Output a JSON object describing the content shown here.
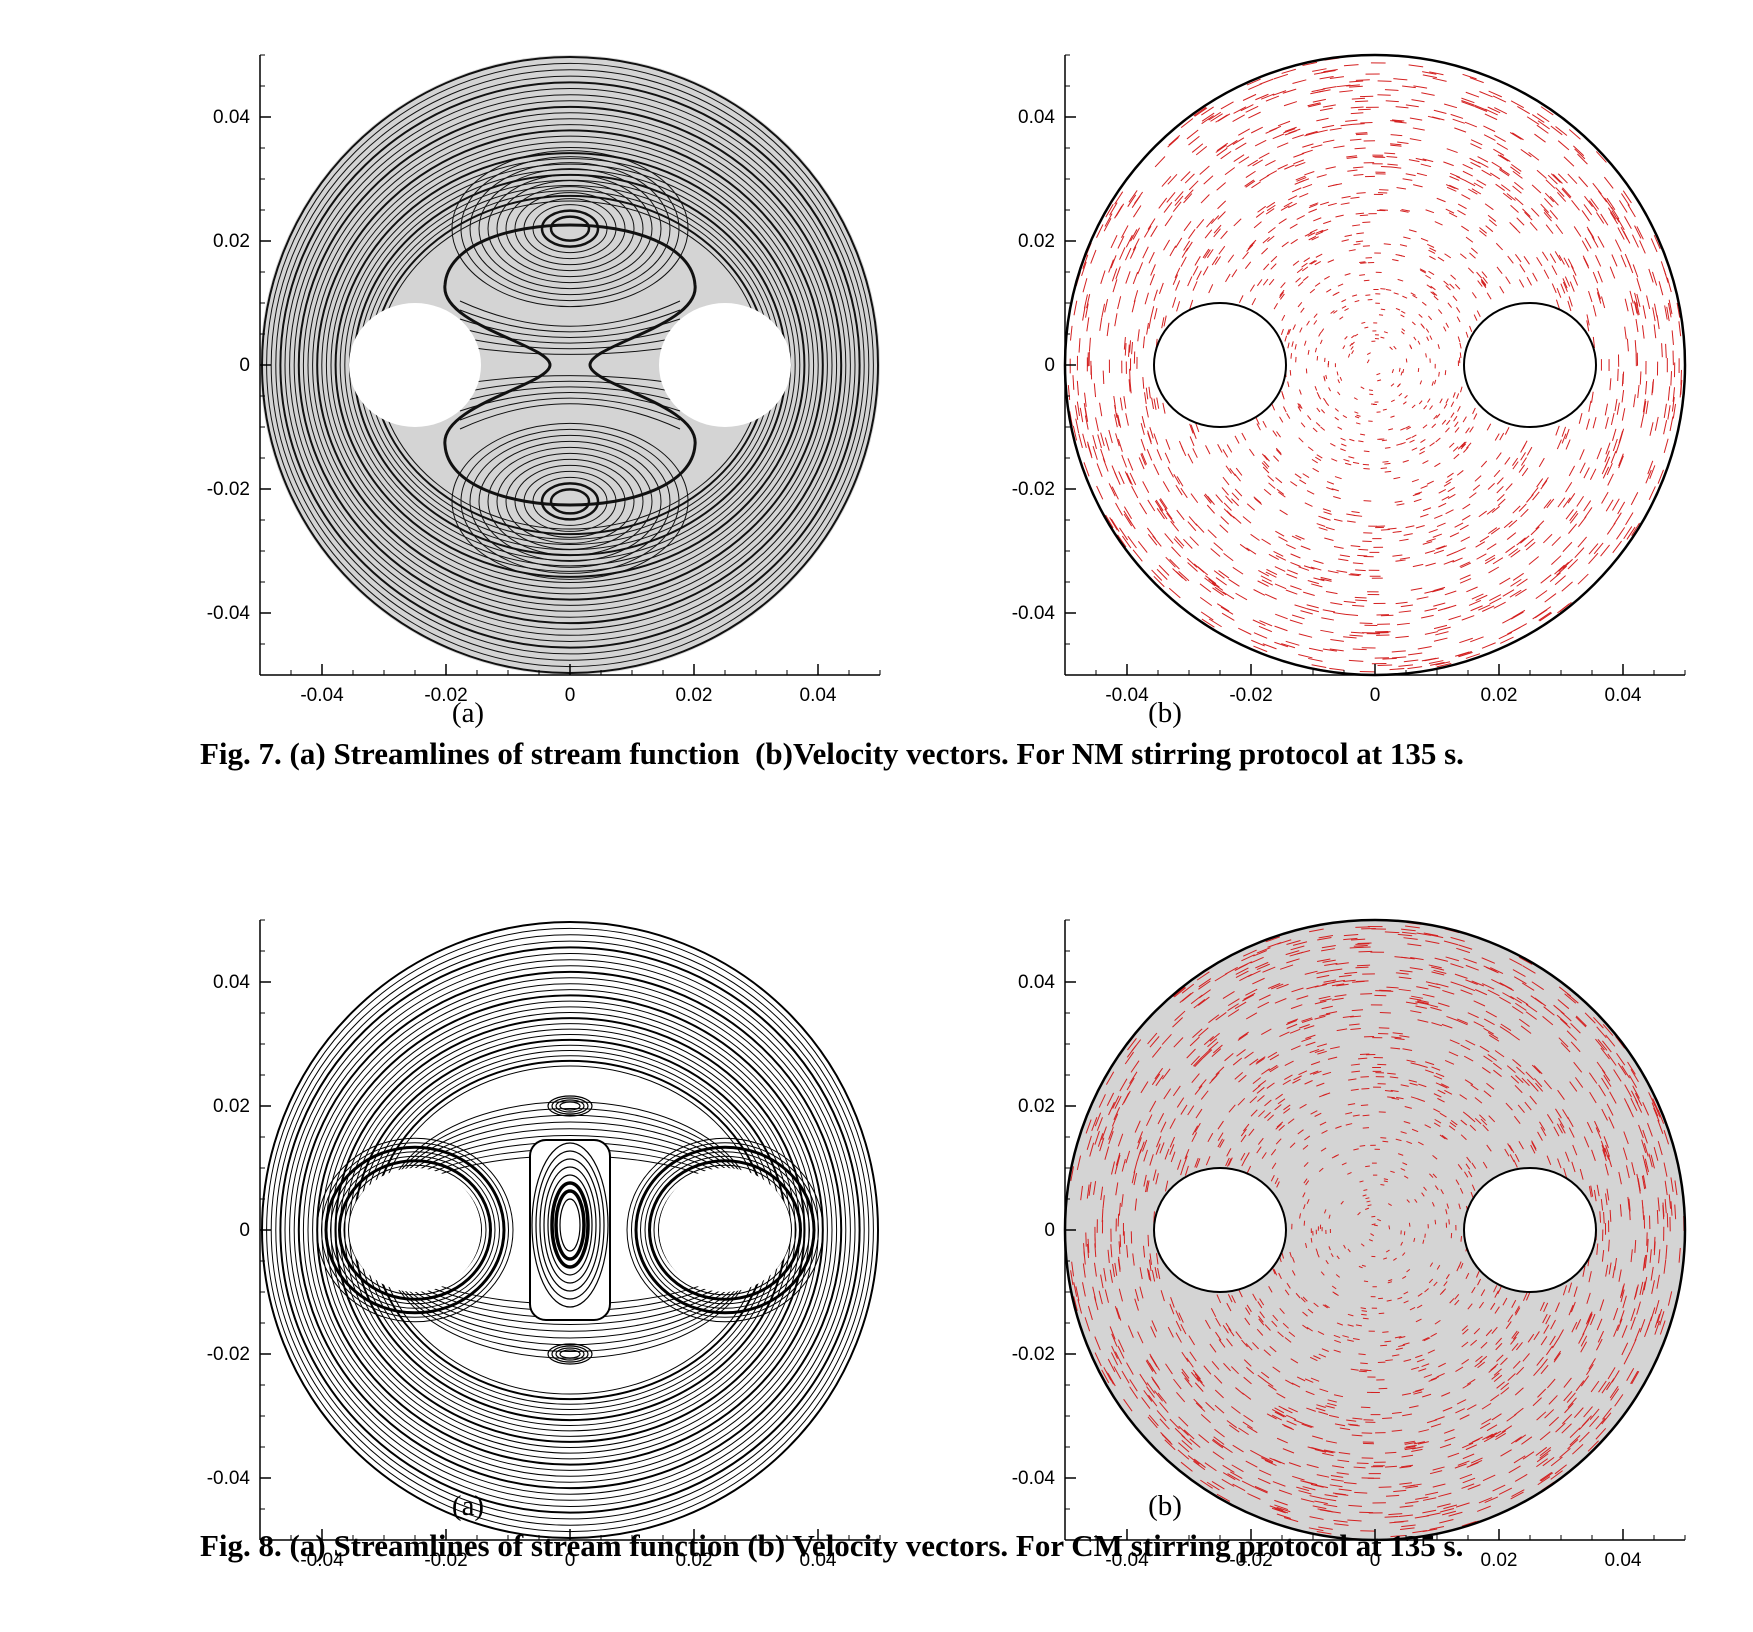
{
  "figures": [
    {
      "id": "fig7",
      "caption": "Fig. 7. (a) Streamlines of stream function  (b)Velocity vectors. For NM stirring protocol at 135 s.",
      "panel_a_label": "(a)",
      "panel_b_label": "(b)"
    },
    {
      "id": "fig8",
      "caption": "Fig. 8. (a) Streamlines of stream function (b) Velocity vectors. For CM stirring protocol at 135 s.",
      "panel_a_label": "(a)",
      "panel_b_label": "(b)"
    }
  ],
  "chart_data": [
    {
      "id": "fig7a",
      "type": "streamline-contour",
      "xlim": [
        -0.05,
        0.05
      ],
      "ylim": [
        -0.05,
        0.05
      ],
      "xticks": [
        -0.04,
        -0.02,
        0,
        0.02,
        0.04
      ],
      "xtick_labels": [
        "-0.04",
        "-0.02",
        "0",
        "0.02",
        "0.04"
      ],
      "yticks": [
        -0.04,
        -0.02,
        0,
        0.02,
        0.04
      ],
      "ytick_labels": [
        "-0.04",
        "-0.02",
        "0",
        "0.02",
        "0.04"
      ],
      "domain_radius": 0.05,
      "stirrer_centers": [
        [
          -0.025,
          0
        ],
        [
          0.025,
          0
        ]
      ],
      "stirrer_radius": 0.01,
      "vortex_centers": [
        [
          0,
          0.022
        ],
        [
          0,
          -0.022
        ]
      ],
      "fill": "#d4d4d4",
      "line_color": "#111111"
    },
    {
      "id": "fig7b",
      "type": "vector-field",
      "xlim": [
        -0.05,
        0.05
      ],
      "ylim": [
        -0.05,
        0.05
      ],
      "xticks": [
        -0.04,
        -0.02,
        0,
        0.02,
        0.04
      ],
      "xtick_labels": [
        "-0.04",
        "-0.02",
        "0",
        "0.02",
        "0.04"
      ],
      "yticks": [
        -0.04,
        -0.02,
        0,
        0.02,
        0.04
      ],
      "ytick_labels": [
        "-0.04",
        "-0.02",
        "0",
        "0.02",
        "0.04"
      ],
      "domain_radius": 0.05,
      "stirrer_centers": [
        [
          -0.025,
          0
        ],
        [
          0.025,
          0
        ]
      ],
      "stirrer_radius": 0.01,
      "fill": "#ffffff",
      "vector_color": "#d42020"
    },
    {
      "id": "fig8a",
      "type": "streamline-contour",
      "xlim": [
        -0.05,
        0.05
      ],
      "ylim": [
        -0.05,
        0.05
      ],
      "xticks": [
        -0.04,
        -0.02,
        0,
        0.02,
        0.04
      ],
      "xtick_labels": [
        "-0.04",
        "-0.02",
        "0",
        "0.02",
        "0.04"
      ],
      "yticks": [
        -0.04,
        -0.02,
        0,
        0.02,
        0.04
      ],
      "ytick_labels": [
        "-0.04",
        "-0.02",
        "0",
        "0.02",
        "0.04"
      ],
      "domain_radius": 0.05,
      "stirrer_centers": [
        [
          -0.025,
          0
        ],
        [
          0.025,
          0
        ]
      ],
      "stirrer_radius": 0.01,
      "vortex_centers": [
        [
          0,
          0
        ],
        [
          0,
          0.02
        ],
        [
          0,
          -0.02
        ]
      ],
      "fill": "#ffffff",
      "line_color": "#000000"
    },
    {
      "id": "fig8b",
      "type": "vector-field",
      "xlim": [
        -0.05,
        0.05
      ],
      "ylim": [
        -0.05,
        0.05
      ],
      "xticks": [
        -0.04,
        -0.02,
        0,
        0.02,
        0.04
      ],
      "xtick_labels": [
        "-0.04",
        "-0.02",
        "0",
        "0.02",
        "0.04"
      ],
      "yticks": [
        -0.04,
        -0.02,
        0,
        0.02,
        0.04
      ],
      "ytick_labels": [
        "-0.04",
        "-0.02",
        "0",
        "0.02",
        "0.04"
      ],
      "domain_radius": 0.05,
      "stirrer_centers": [
        [
          -0.025,
          0
        ],
        [
          0.025,
          0
        ]
      ],
      "stirrer_radius": 0.01,
      "fill": "#d4d4d4",
      "vector_color": "#d42020"
    }
  ]
}
